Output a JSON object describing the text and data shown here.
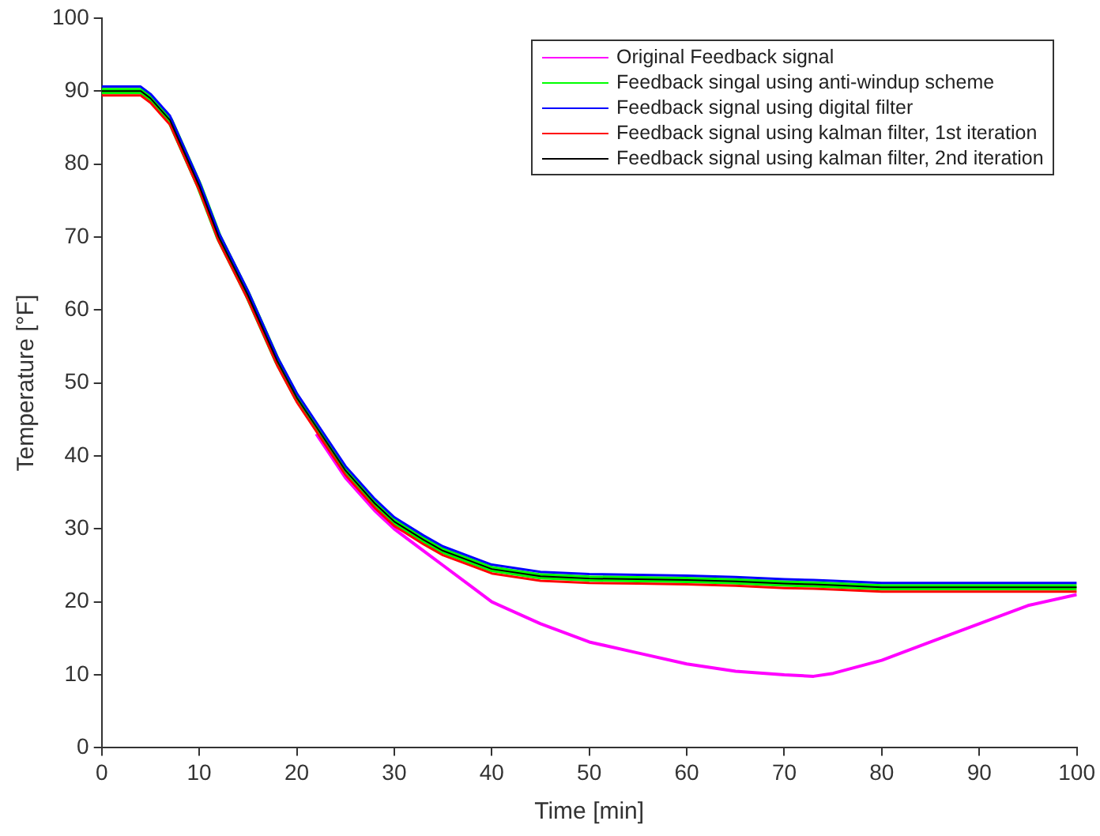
{
  "chart_data": {
    "type": "line",
    "xlabel": "Time [min]",
    "ylabel": "Temperature [°F]",
    "x": [
      0,
      2,
      4,
      5,
      7,
      10,
      12,
      15,
      18,
      20,
      22,
      25,
      28,
      30,
      33,
      35,
      38,
      40,
      45,
      50,
      55,
      60,
      65,
      70,
      73,
      75,
      80,
      85,
      90,
      95,
      100
    ],
    "series": [
      {
        "name": "Original Feedback signal",
        "color": "#ff00ff",
        "values": [
          null,
          null,
          null,
          null,
          null,
          null,
          null,
          null,
          null,
          null,
          43,
          37,
          32.5,
          30,
          27,
          25,
          22,
          20,
          17,
          14.5,
          13,
          11.5,
          10.5,
          10,
          9.8,
          10.2,
          12,
          14.5,
          17,
          19.5,
          21
        ]
      },
      {
        "name": "Feedback singal using anti-windup scheme",
        "color": "#00ff00",
        "values": [
          90,
          90,
          90,
          89,
          86,
          77,
          70,
          62,
          53,
          48,
          44,
          38,
          33.5,
          31,
          28.5,
          27,
          25.5,
          24.5,
          23.5,
          23.2,
          23.1,
          23,
          22.8,
          22.5,
          22.4,
          22.3,
          22,
          22,
          22,
          22,
          22
        ]
      },
      {
        "name": "Feedback signal using digital filter",
        "color": "#0000ff",
        "values": [
          90.6,
          90.6,
          90.6,
          89.6,
          86.6,
          77.6,
          70.6,
          62.6,
          53.6,
          48.6,
          44.6,
          38.6,
          34.1,
          31.6,
          29.1,
          27.6,
          26.1,
          25.1,
          24.1,
          23.8,
          23.7,
          23.6,
          23.4,
          23.1,
          23,
          22.9,
          22.6,
          22.6,
          22.6,
          22.6,
          22.6
        ]
      },
      {
        "name": "Feedback signal using kalman filter, 1st iteration",
        "color": "#ff0000",
        "values": [
          89.4,
          89.4,
          89.4,
          88.4,
          85.4,
          76.4,
          69.4,
          61.4,
          52.4,
          47.4,
          43.4,
          37.4,
          32.9,
          30.4,
          27.9,
          26.4,
          24.9,
          23.9,
          22.9,
          22.6,
          22.5,
          22.4,
          22.2,
          21.9,
          21.8,
          21.7,
          21.4,
          21.4,
          21.4,
          21.4,
          21.4
        ]
      },
      {
        "name": "Feedback signal using kalman filter, 2nd iteration",
        "color": "#000000",
        "values": [
          90,
          90,
          90,
          89,
          86,
          77,
          70,
          62,
          53,
          48,
          44,
          38,
          33.5,
          31,
          28.5,
          27,
          25.5,
          24.5,
          23.5,
          23.2,
          23.1,
          23,
          22.8,
          22.5,
          22.4,
          22.3,
          22,
          22,
          22,
          22,
          22
        ]
      }
    ],
    "xlim": [
      0,
      100
    ],
    "xticks": [
      0,
      10,
      20,
      30,
      40,
      50,
      60,
      70,
      80,
      90,
      100
    ],
    "ylim": [
      0,
      100
    ],
    "yticks": [
      0,
      10,
      20,
      30,
      40,
      50,
      60,
      70,
      80,
      90,
      100
    ],
    "grid": false,
    "legend": "top right",
    "marker": "none",
    "line_style": "solid"
  }
}
